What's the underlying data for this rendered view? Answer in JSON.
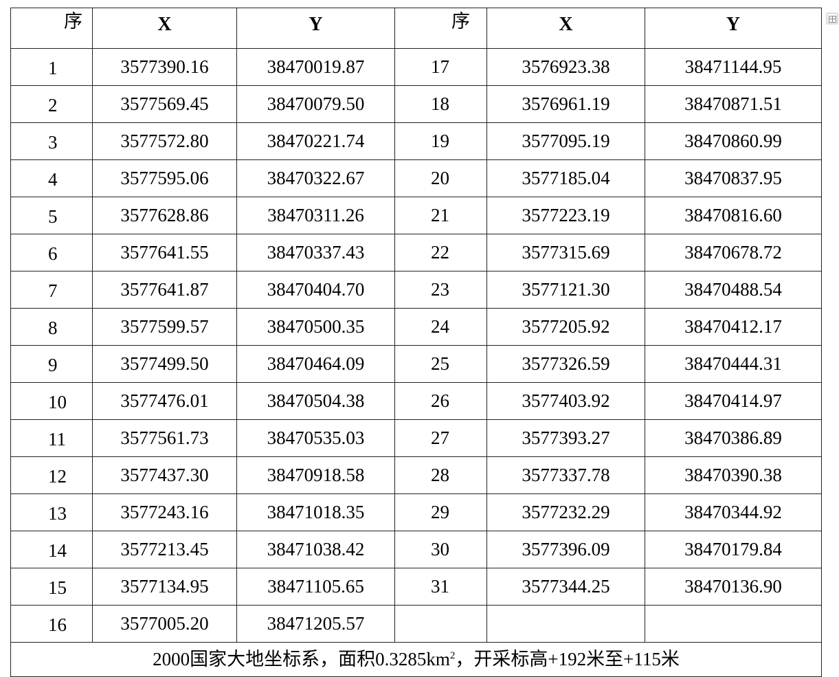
{
  "header": {
    "seq": "序",
    "x": "X",
    "y": "Y"
  },
  "rows": [
    [
      "1",
      "3577390.16",
      "38470019.87"
    ],
    [
      "2",
      "3577569.45",
      "38470079.50"
    ],
    [
      "3",
      "3577572.80",
      "38470221.74"
    ],
    [
      "4",
      "3577595.06",
      "38470322.67"
    ],
    [
      "5",
      "3577628.86",
      "38470311.26"
    ],
    [
      "6",
      "3577641.55",
      "38470337.43"
    ],
    [
      "7",
      "3577641.87",
      "38470404.70"
    ],
    [
      "8",
      "3577599.57",
      "38470500.35"
    ],
    [
      "9",
      "3577499.50",
      "38470464.09"
    ],
    [
      "10",
      "3577476.01",
      "38470504.38"
    ],
    [
      "11",
      "3577561.73",
      "38470535.03"
    ],
    [
      "12",
      "3577437.30",
      "38470918.58"
    ],
    [
      "13",
      "3577243.16",
      "38471018.35"
    ],
    [
      "14",
      "3577213.45",
      "38471038.42"
    ],
    [
      "15",
      "3577134.95",
      "38471105.65"
    ],
    [
      "16",
      "3577005.20",
      "38471205.57"
    ],
    [
      "17",
      "3576923.38",
      "38471144.95"
    ],
    [
      "18",
      "3576961.19",
      "38470871.51"
    ],
    [
      "19",
      "3577095.19",
      "38470860.99"
    ],
    [
      "20",
      "3577185.04",
      "38470837.95"
    ],
    [
      "21",
      "3577223.19",
      "38470816.60"
    ],
    [
      "22",
      "3577315.69",
      "38470678.72"
    ],
    [
      "23",
      "3577121.30",
      "38470488.54"
    ],
    [
      "24",
      "3577205.92",
      "38470412.17"
    ],
    [
      "25",
      "3577326.59",
      "38470444.31"
    ],
    [
      "26",
      "3577403.92",
      "38470414.97"
    ],
    [
      "27",
      "3577393.27",
      "38470386.89"
    ],
    [
      "28",
      "3577337.78",
      "38470390.38"
    ],
    [
      "29",
      "3577232.29",
      "38470344.92"
    ],
    [
      "30",
      "3577396.09",
      "38470179.84"
    ],
    [
      "31",
      "3577344.25",
      "38470136.90"
    ]
  ],
  "footer": {
    "text": "2000国家大地坐标系，面积0.3285km",
    "sup": "2",
    "text_after": "，开采标高+192米至+115米"
  },
  "icons": {
    "table_handle": "table-move-handle-icon"
  }
}
